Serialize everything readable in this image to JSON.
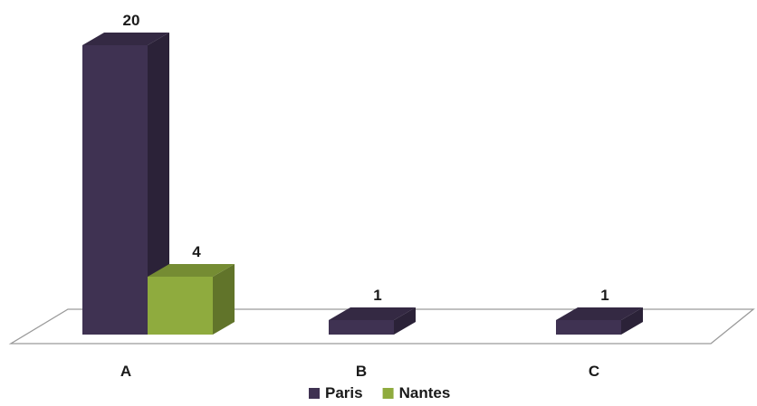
{
  "chart_data": {
    "type": "bar",
    "style": "3d-clustered-column",
    "categories": [
      "A",
      "B",
      "C"
    ],
    "series": [
      {
        "name": "Paris",
        "values": [
          20,
          1,
          1
        ],
        "color": "#3f3252"
      },
      {
        "name": "Nantes",
        "values": [
          4,
          null,
          null
        ],
        "color": "#8fab3e"
      }
    ],
    "title": "",
    "xlabel": "",
    "ylabel": "",
    "ylim": [
      0,
      20
    ],
    "grid": false,
    "data_labels": true,
    "legend_position": "bottom"
  }
}
